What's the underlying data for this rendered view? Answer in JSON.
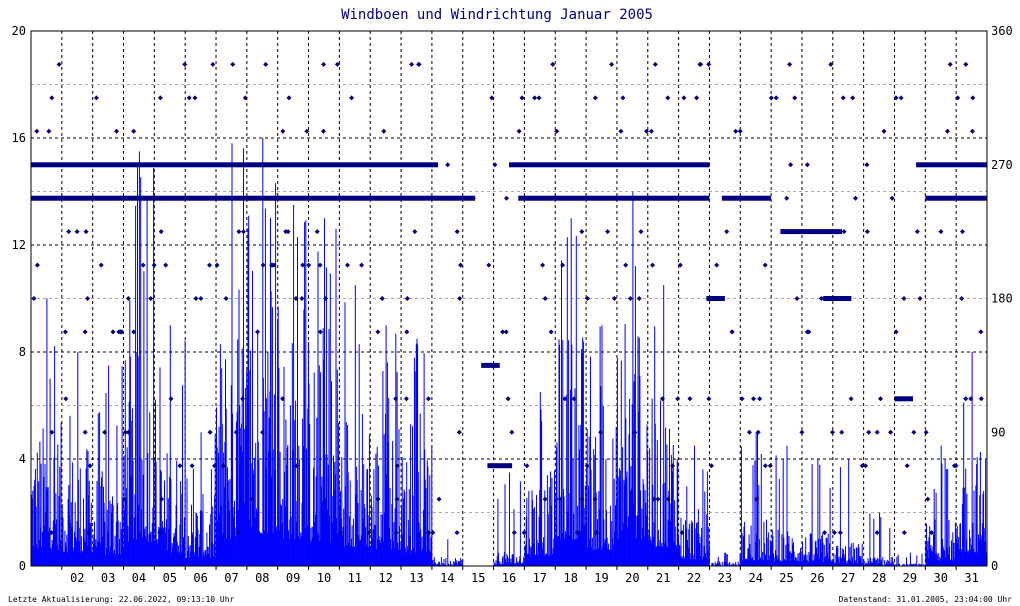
{
  "chart_data": {
    "type": "bar",
    "title": "Windboen und Windrichtung Januar 2005",
    "x_tick_labels": [
      "02",
      "03",
      "04",
      "05",
      "06",
      "07",
      "08",
      "09",
      "10",
      "11",
      "12",
      "13",
      "14",
      "15",
      "16",
      "17",
      "18",
      "19",
      "20",
      "21",
      "22",
      "23",
      "24",
      "25",
      "26",
      "27",
      "28",
      "29",
      "30",
      "31"
    ],
    "x_range_days": [
      1,
      32
    ],
    "y_left": {
      "range": [
        0,
        20
      ],
      "tick_labels": [
        "0",
        "4",
        "8",
        "12",
        "16",
        "20"
      ]
    },
    "y_right": {
      "range": [
        0,
        360
      ],
      "tick_labels": [
        "0",
        "90",
        "180",
        "270",
        "360"
      ]
    },
    "grid": true,
    "series": [
      {
        "kind": "bars",
        "color": "#0000ff",
        "daily_activity": [
          {
            "day": 1,
            "peak": 10.0,
            "mean": 3.0
          },
          {
            "day": 2,
            "peak": 8.0,
            "mean": 2.5
          },
          {
            "day": 3,
            "peak": 7.5,
            "mean": 2.0
          },
          {
            "day": 4,
            "peak": 15.5,
            "mean": 4.5
          },
          {
            "day": 5,
            "peak": 9.0,
            "mean": 2.5
          },
          {
            "day": 6,
            "peak": 5.0,
            "mean": 1.5
          },
          {
            "day": 7,
            "peak": 15.8,
            "mean": 5.0
          },
          {
            "day": 8,
            "peak": 16.0,
            "mean": 6.0
          },
          {
            "day": 9,
            "peak": 13.5,
            "mean": 5.0
          },
          {
            "day": 10,
            "peak": 13.0,
            "mean": 4.5
          },
          {
            "day": 11,
            "peak": 10.5,
            "mean": 3.5
          },
          {
            "day": 12,
            "peak": 9.0,
            "mean": 3.0
          },
          {
            "day": 13,
            "peak": 8.5,
            "mean": 2.5
          },
          {
            "day": 14,
            "peak": 1.0,
            "mean": 0.2
          },
          {
            "day": 15,
            "peak": 0.0,
            "mean": 0.0
          },
          {
            "day": 16,
            "peak": 3.5,
            "mean": 0.3
          },
          {
            "day": 17,
            "peak": 6.5,
            "mean": 2.0
          },
          {
            "day": 18,
            "peak": 13.0,
            "mean": 5.0
          },
          {
            "day": 19,
            "peak": 9.0,
            "mean": 3.0
          },
          {
            "day": 20,
            "peak": 14.0,
            "mean": 5.0
          },
          {
            "day": 21,
            "peak": 10.5,
            "mean": 3.5
          },
          {
            "day": 22,
            "peak": 4.5,
            "mean": 1.2
          },
          {
            "day": 23,
            "peak": 0.5,
            "mean": 0.1
          },
          {
            "day": 24,
            "peak": 5.0,
            "mean": 1.0
          },
          {
            "day": 25,
            "peak": 4.5,
            "mean": 0.8
          },
          {
            "day": 26,
            "peak": 4.0,
            "mean": 0.7
          },
          {
            "day": 27,
            "peak": 4.0,
            "mean": 0.5
          },
          {
            "day": 28,
            "peak": 2.0,
            "mean": 0.2
          },
          {
            "day": 29,
            "peak": 0.5,
            "mean": 0.05
          },
          {
            "day": 30,
            "peak": 4.5,
            "mean": 1.0
          },
          {
            "day": 31,
            "peak": 8.0,
            "mean": 2.5
          }
        ]
      },
      {
        "kind": "points",
        "color": "#000080",
        "direction_levels_deg": [
          157.5,
          180,
          202.5,
          225,
          247.5,
          270,
          292.5,
          315,
          337.5,
          22.5,
          45,
          67.5,
          90,
          112.5
        ],
        "dense_bands": [
          {
            "deg": 270,
            "from_day": 1.0,
            "to_day": 14.2
          },
          {
            "deg": 247.5,
            "from_day": 1.0,
            "to_day": 15.4
          },
          {
            "deg": 270,
            "from_day": 16.5,
            "to_day": 23.0
          },
          {
            "deg": 247.5,
            "from_day": 16.8,
            "to_day": 23.0
          },
          {
            "deg": 225,
            "from_day": 25.3,
            "to_day": 27.3
          },
          {
            "deg": 180,
            "from_day": 26.7,
            "to_day": 27.6
          },
          {
            "deg": 180,
            "from_day": 22.9,
            "to_day": 23.5
          },
          {
            "deg": 247.5,
            "from_day": 23.4,
            "to_day": 25.0
          },
          {
            "deg": 270,
            "from_day": 29.7,
            "to_day": 32.0
          },
          {
            "deg": 247.5,
            "from_day": 30.0,
            "to_day": 32.0
          },
          {
            "deg": 67.5,
            "from_day": 15.8,
            "to_day": 16.6
          },
          {
            "deg": 135,
            "from_day": 15.6,
            "to_day": 16.2
          },
          {
            "deg": 112.5,
            "from_day": 29.0,
            "to_day": 29.6
          }
        ]
      }
    ]
  },
  "footer": {
    "left": "Letzte Aktualisierung: 22.06.2022, 09:13:10 Uhr",
    "right": "Datenstand: 31.01.2005, 23:04:00 Uhr"
  }
}
